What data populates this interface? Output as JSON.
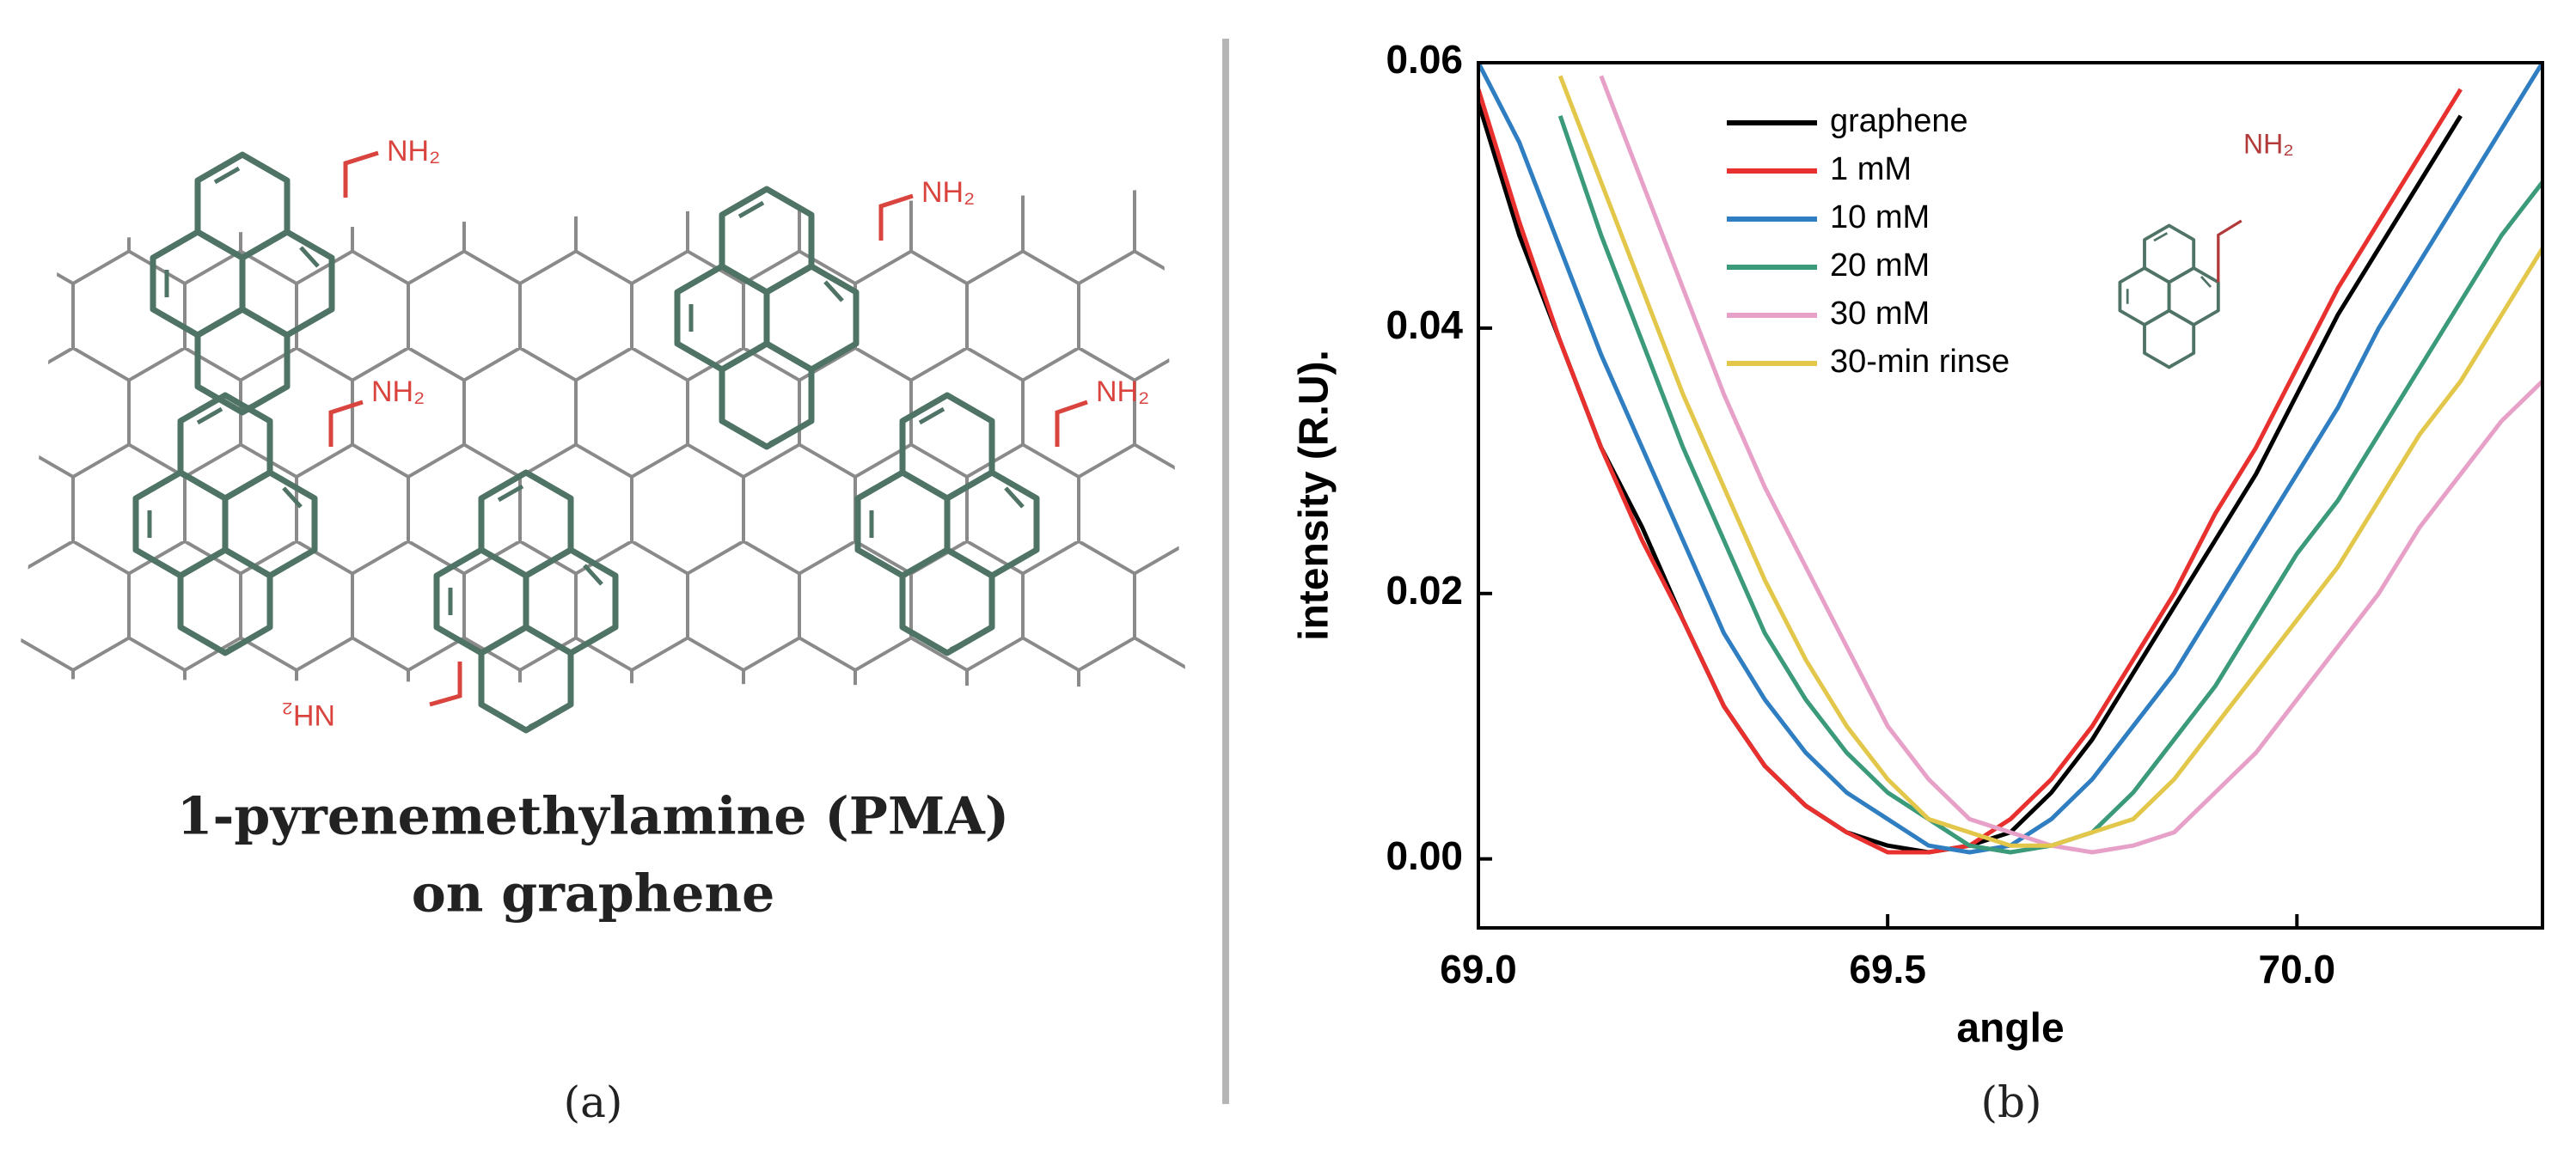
{
  "panel_a": {
    "caption": [
      "1-pyrenemethylamine (PMA)",
      "on graphene"
    ],
    "label": "(a)",
    "amine_labels": [
      "NH₂",
      "NH₂",
      "NH₂",
      "NH₂",
      "NH₂"
    ]
  },
  "chart_data": {
    "type": "line",
    "label": "(b)",
    "xlabel": "angle",
    "ylabel": "intensity (R.U).",
    "annotation": "NH₂",
    "x": [
      69.0,
      69.05,
      69.1,
      69.15,
      69.2,
      69.25,
      69.3,
      69.35,
      69.4,
      69.45,
      69.5,
      69.55,
      69.6,
      69.65,
      69.7,
      69.75,
      69.8,
      69.85,
      69.9,
      69.95,
      70.0,
      70.05,
      70.1,
      70.15,
      70.2,
      70.25,
      70.3
    ],
    "series": [
      {
        "name": "graphene",
        "color": "#000000",
        "values": [
          0.057,
          0.047,
          0.039,
          0.031,
          0.025,
          0.018,
          0.0115,
          0.007,
          0.004,
          0.002,
          0.001,
          0.0005,
          0.001,
          0.002,
          0.005,
          0.009,
          0.014,
          0.019,
          0.024,
          0.029,
          0.035,
          0.041,
          0.046,
          0.051,
          0.056,
          null,
          null
        ]
      },
      {
        "name": "1 mM",
        "color": "#e8312f",
        "values": [
          0.058,
          0.048,
          0.039,
          0.031,
          0.024,
          0.018,
          0.0115,
          0.007,
          0.004,
          0.002,
          0.0005,
          0.0005,
          0.001,
          0.003,
          0.006,
          0.01,
          0.015,
          0.02,
          0.026,
          0.031,
          0.037,
          0.043,
          0.048,
          0.053,
          0.058,
          null,
          null
        ]
      },
      {
        "name": "10 mM",
        "color": "#2f7ec1",
        "values": [
          0.06,
          0.054,
          0.046,
          0.038,
          0.031,
          0.024,
          0.017,
          0.012,
          0.008,
          0.005,
          0.003,
          0.001,
          0.0005,
          0.001,
          0.003,
          0.006,
          0.01,
          0.014,
          0.019,
          0.024,
          0.029,
          0.034,
          0.04,
          0.045,
          0.05,
          0.055,
          0.06
        ]
      },
      {
        "name": "20 mM",
        "color": "#3a9a7a",
        "values": [
          null,
          null,
          0.056,
          0.047,
          0.039,
          0.031,
          0.024,
          0.017,
          0.012,
          0.008,
          0.005,
          0.003,
          0.001,
          0.0005,
          0.001,
          0.002,
          0.005,
          0.009,
          0.013,
          0.018,
          0.023,
          0.027,
          0.032,
          0.037,
          0.042,
          0.047,
          0.051
        ]
      },
      {
        "name": "30 mM",
        "color": "#e7a1c8",
        "values": [
          null,
          null,
          null,
          0.059,
          0.051,
          0.043,
          0.035,
          0.028,
          0.022,
          0.016,
          0.01,
          0.006,
          0.003,
          0.002,
          0.001,
          0.0005,
          0.001,
          0.002,
          0.005,
          0.008,
          0.012,
          0.016,
          0.02,
          0.025,
          0.029,
          0.033,
          0.036
        ]
      },
      {
        "name": "30-min rinse",
        "color": "#e2c74a",
        "values": [
          null,
          null,
          0.059,
          0.051,
          0.043,
          0.035,
          0.028,
          0.021,
          0.015,
          0.01,
          0.006,
          0.003,
          0.002,
          0.001,
          0.001,
          0.002,
          0.003,
          0.006,
          0.01,
          0.014,
          0.018,
          0.022,
          0.027,
          0.032,
          0.036,
          0.041,
          0.046
        ]
      }
    ],
    "xlim": [
      69.0,
      70.3
    ],
    "ylim": [
      -0.0052,
      0.06
    ],
    "xticks": [
      {
        "value": 69,
        "label": "69.0"
      },
      69.5,
      {
        "value": 70,
        "label": "70.0"
      }
    ],
    "yticks": [
      {
        "value": 0,
        "label": "0.00"
      },
      {
        "value": 0.02,
        "label": "0.02"
      },
      {
        "value": 0.04,
        "label": "0.04"
      },
      {
        "value": 0.06,
        "label": "0.06"
      }
    ],
    "legend": "upper center"
  }
}
